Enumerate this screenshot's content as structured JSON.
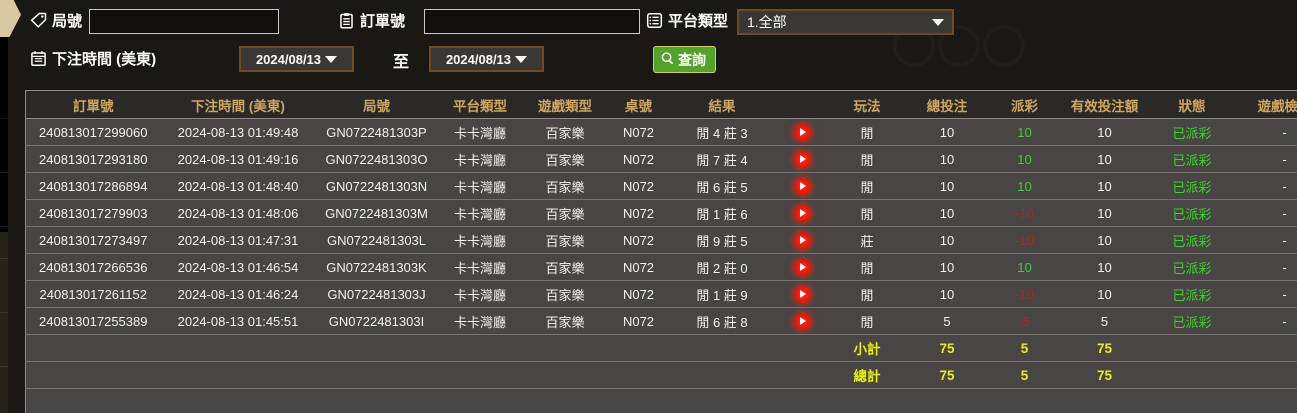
{
  "filters": {
    "game_no": {
      "label": "局號",
      "value": "",
      "icon": "tag-icon"
    },
    "order_no": {
      "label": "訂單號",
      "value": "",
      "icon": "clipboard-icon"
    },
    "platform_type": {
      "label": "平台類型",
      "selected": "1.全部",
      "icon": "list-icon"
    },
    "bet_time": {
      "label": "下注時間 (美東)",
      "from": "2024/08/13",
      "to_label": "至",
      "to": "2024/08/13",
      "icon": "calendar-icon"
    },
    "search_label": "查詢"
  },
  "table": {
    "headers": [
      {
        "key": "order_no",
        "label": "訂單號"
      },
      {
        "key": "bet_time",
        "label": "下注時間 (美東)"
      },
      {
        "key": "game_no",
        "label": "局號"
      },
      {
        "key": "platform",
        "label": "平台類型"
      },
      {
        "key": "game_type",
        "label": "遊戲類型"
      },
      {
        "key": "table_no",
        "label": "桌號"
      },
      {
        "key": "result",
        "label": "結果"
      },
      {
        "key": "replay",
        "label": ""
      },
      {
        "key": "play_type",
        "label": "玩法"
      },
      {
        "key": "total_bet",
        "label": "總投注"
      },
      {
        "key": "payout",
        "label": "派彩"
      },
      {
        "key": "valid_bet",
        "label": "有效投注額"
      },
      {
        "key": "status",
        "label": "狀態"
      },
      {
        "key": "game_view",
        "label": "遊戲檢視"
      }
    ],
    "rows": [
      {
        "order_no": "240813017299060",
        "bet_time": "2024-08-13 01:49:48",
        "game_no": "GN0722481303P",
        "platform": "卡卡灣廳",
        "game_type": "百家樂",
        "table_no": "N072",
        "result": "閒 4 莊 3",
        "play_type": "閒",
        "total_bet": "10",
        "payout": "10",
        "valid_bet": "10",
        "status": "已派彩",
        "game_view": "-"
      },
      {
        "order_no": "240813017293180",
        "bet_time": "2024-08-13 01:49:16",
        "game_no": "GN0722481303O",
        "platform": "卡卡灣廳",
        "game_type": "百家樂",
        "table_no": "N072",
        "result": "閒 7 莊 4",
        "play_type": "閒",
        "total_bet": "10",
        "payout": "10",
        "valid_bet": "10",
        "status": "已派彩",
        "game_view": "-"
      },
      {
        "order_no": "240813017286894",
        "bet_time": "2024-08-13 01:48:40",
        "game_no": "GN0722481303N",
        "platform": "卡卡灣廳",
        "game_type": "百家樂",
        "table_no": "N072",
        "result": "閒 6 莊 5",
        "play_type": "閒",
        "total_bet": "10",
        "payout": "10",
        "valid_bet": "10",
        "status": "已派彩",
        "game_view": "-"
      },
      {
        "order_no": "240813017279903",
        "bet_time": "2024-08-13 01:48:06",
        "game_no": "GN0722481303M",
        "platform": "卡卡灣廳",
        "game_type": "百家樂",
        "table_no": "N072",
        "result": "閒 1 莊 6",
        "play_type": "閒",
        "total_bet": "10",
        "payout": "-10",
        "valid_bet": "10",
        "status": "已派彩",
        "game_view": "-"
      },
      {
        "order_no": "240813017273497",
        "bet_time": "2024-08-13 01:47:31",
        "game_no": "GN0722481303L",
        "platform": "卡卡灣廳",
        "game_type": "百家樂",
        "table_no": "N072",
        "result": "閒 9 莊 5",
        "play_type": "莊",
        "total_bet": "10",
        "payout": "-10",
        "valid_bet": "10",
        "status": "已派彩",
        "game_view": "-"
      },
      {
        "order_no": "240813017266536",
        "bet_time": "2024-08-13 01:46:54",
        "game_no": "GN0722481303K",
        "platform": "卡卡灣廳",
        "game_type": "百家樂",
        "table_no": "N072",
        "result": "閒 2 莊 0",
        "play_type": "閒",
        "total_bet": "10",
        "payout": "10",
        "valid_bet": "10",
        "status": "已派彩",
        "game_view": "-"
      },
      {
        "order_no": "240813017261152",
        "bet_time": "2024-08-13 01:46:24",
        "game_no": "GN0722481303J",
        "platform": "卡卡灣廳",
        "game_type": "百家樂",
        "table_no": "N072",
        "result": "閒 1 莊 9",
        "play_type": "閒",
        "total_bet": "10",
        "payout": "-10",
        "valid_bet": "10",
        "status": "已派彩",
        "game_view": "-"
      },
      {
        "order_no": "240813017255389",
        "bet_time": "2024-08-13 01:45:51",
        "game_no": "GN0722481303I",
        "platform": "卡卡灣廳",
        "game_type": "百家樂",
        "table_no": "N072",
        "result": "閒 6 莊 8",
        "play_type": "閒",
        "total_bet": "5",
        "payout": "-5",
        "valid_bet": "5",
        "status": "已派彩",
        "game_view": "-"
      }
    ],
    "subtotal": {
      "label": "小計",
      "total_bet": "75",
      "payout": "5",
      "valid_bet": "75"
    },
    "total": {
      "label": "總計",
      "total_bet": "75",
      "payout": "5",
      "valid_bet": "75"
    }
  },
  "colors": {
    "header_text": "#cda55e",
    "row_bg": "#484544",
    "positive": "#3bd42a",
    "negative": "#a52a2a",
    "totals": "#eaef0d",
    "status_paid": "#3bd42a",
    "button_green": "#53a22a",
    "select_border": "#6f4b1e"
  }
}
